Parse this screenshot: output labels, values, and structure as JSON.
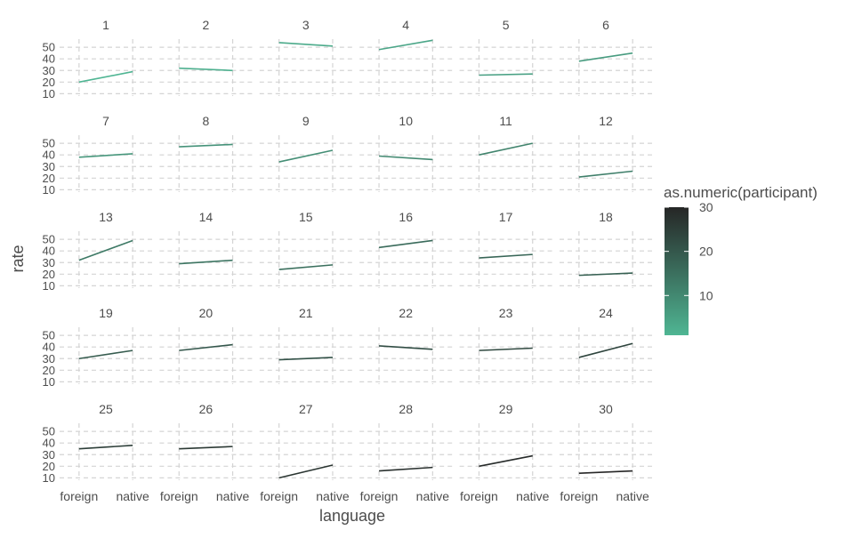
{
  "chart_data": {
    "type": "line",
    "facet_variable": "participant",
    "facets": [
      {
        "label": "1",
        "foreign": 20,
        "native": 29
      },
      {
        "label": "2",
        "foreign": 32,
        "native": 30
      },
      {
        "label": "3",
        "foreign": 54,
        "native": 51
      },
      {
        "label": "4",
        "foreign": 48,
        "native": 56
      },
      {
        "label": "5",
        "foreign": 26,
        "native": 27
      },
      {
        "label": "6",
        "foreign": 38,
        "native": 45
      },
      {
        "label": "7",
        "foreign": 38,
        "native": 41
      },
      {
        "label": "8",
        "foreign": 47,
        "native": 49
      },
      {
        "label": "9",
        "foreign": 34,
        "native": 44
      },
      {
        "label": "10",
        "foreign": 39,
        "native": 36
      },
      {
        "label": "11",
        "foreign": 40,
        "native": 50
      },
      {
        "label": "12",
        "foreign": 21,
        "native": 26
      },
      {
        "label": "13",
        "foreign": 32,
        "native": 49
      },
      {
        "label": "14",
        "foreign": 29,
        "native": 32
      },
      {
        "label": "15",
        "foreign": 24,
        "native": 28
      },
      {
        "label": "16",
        "foreign": 43,
        "native": 49
      },
      {
        "label": "17",
        "foreign": 34,
        "native": 37
      },
      {
        "label": "18",
        "foreign": 19,
        "native": 21
      },
      {
        "label": "19",
        "foreign": 30,
        "native": 37
      },
      {
        "label": "20",
        "foreign": 37,
        "native": 42
      },
      {
        "label": "21",
        "foreign": 29,
        "native": 31
      },
      {
        "label": "22",
        "foreign": 41,
        "native": 38
      },
      {
        "label": "23",
        "foreign": 37,
        "native": 39
      },
      {
        "label": "24",
        "foreign": 31,
        "native": 43
      },
      {
        "label": "25",
        "foreign": 35,
        "native": 38
      },
      {
        "label": "26",
        "foreign": 35,
        "native": 37
      },
      {
        "label": "27",
        "foreign": 10,
        "native": 21
      },
      {
        "label": "28",
        "foreign": 16,
        "native": 19
      },
      {
        "label": "29",
        "foreign": 20,
        "native": 29
      },
      {
        "label": "30",
        "foreign": 14,
        "native": 16
      }
    ],
    "x_categories": [
      "foreign",
      "native"
    ],
    "y_ticks": [
      10,
      20,
      30,
      40,
      50
    ],
    "ylim": [
      8,
      57
    ],
    "xlabel": "language",
    "ylabel": "rate",
    "legend": {
      "title": "as.numeric(participant)",
      "position": "right",
      "ticks": [
        10,
        20,
        30
      ],
      "range": [
        1,
        30
      ],
      "low_color": "#4fb593",
      "high_color": "#262626"
    },
    "grid": true,
    "grid_style": "dashed",
    "grid_color": "#d4d4d4",
    "text_color": "#4d4d4d"
  }
}
